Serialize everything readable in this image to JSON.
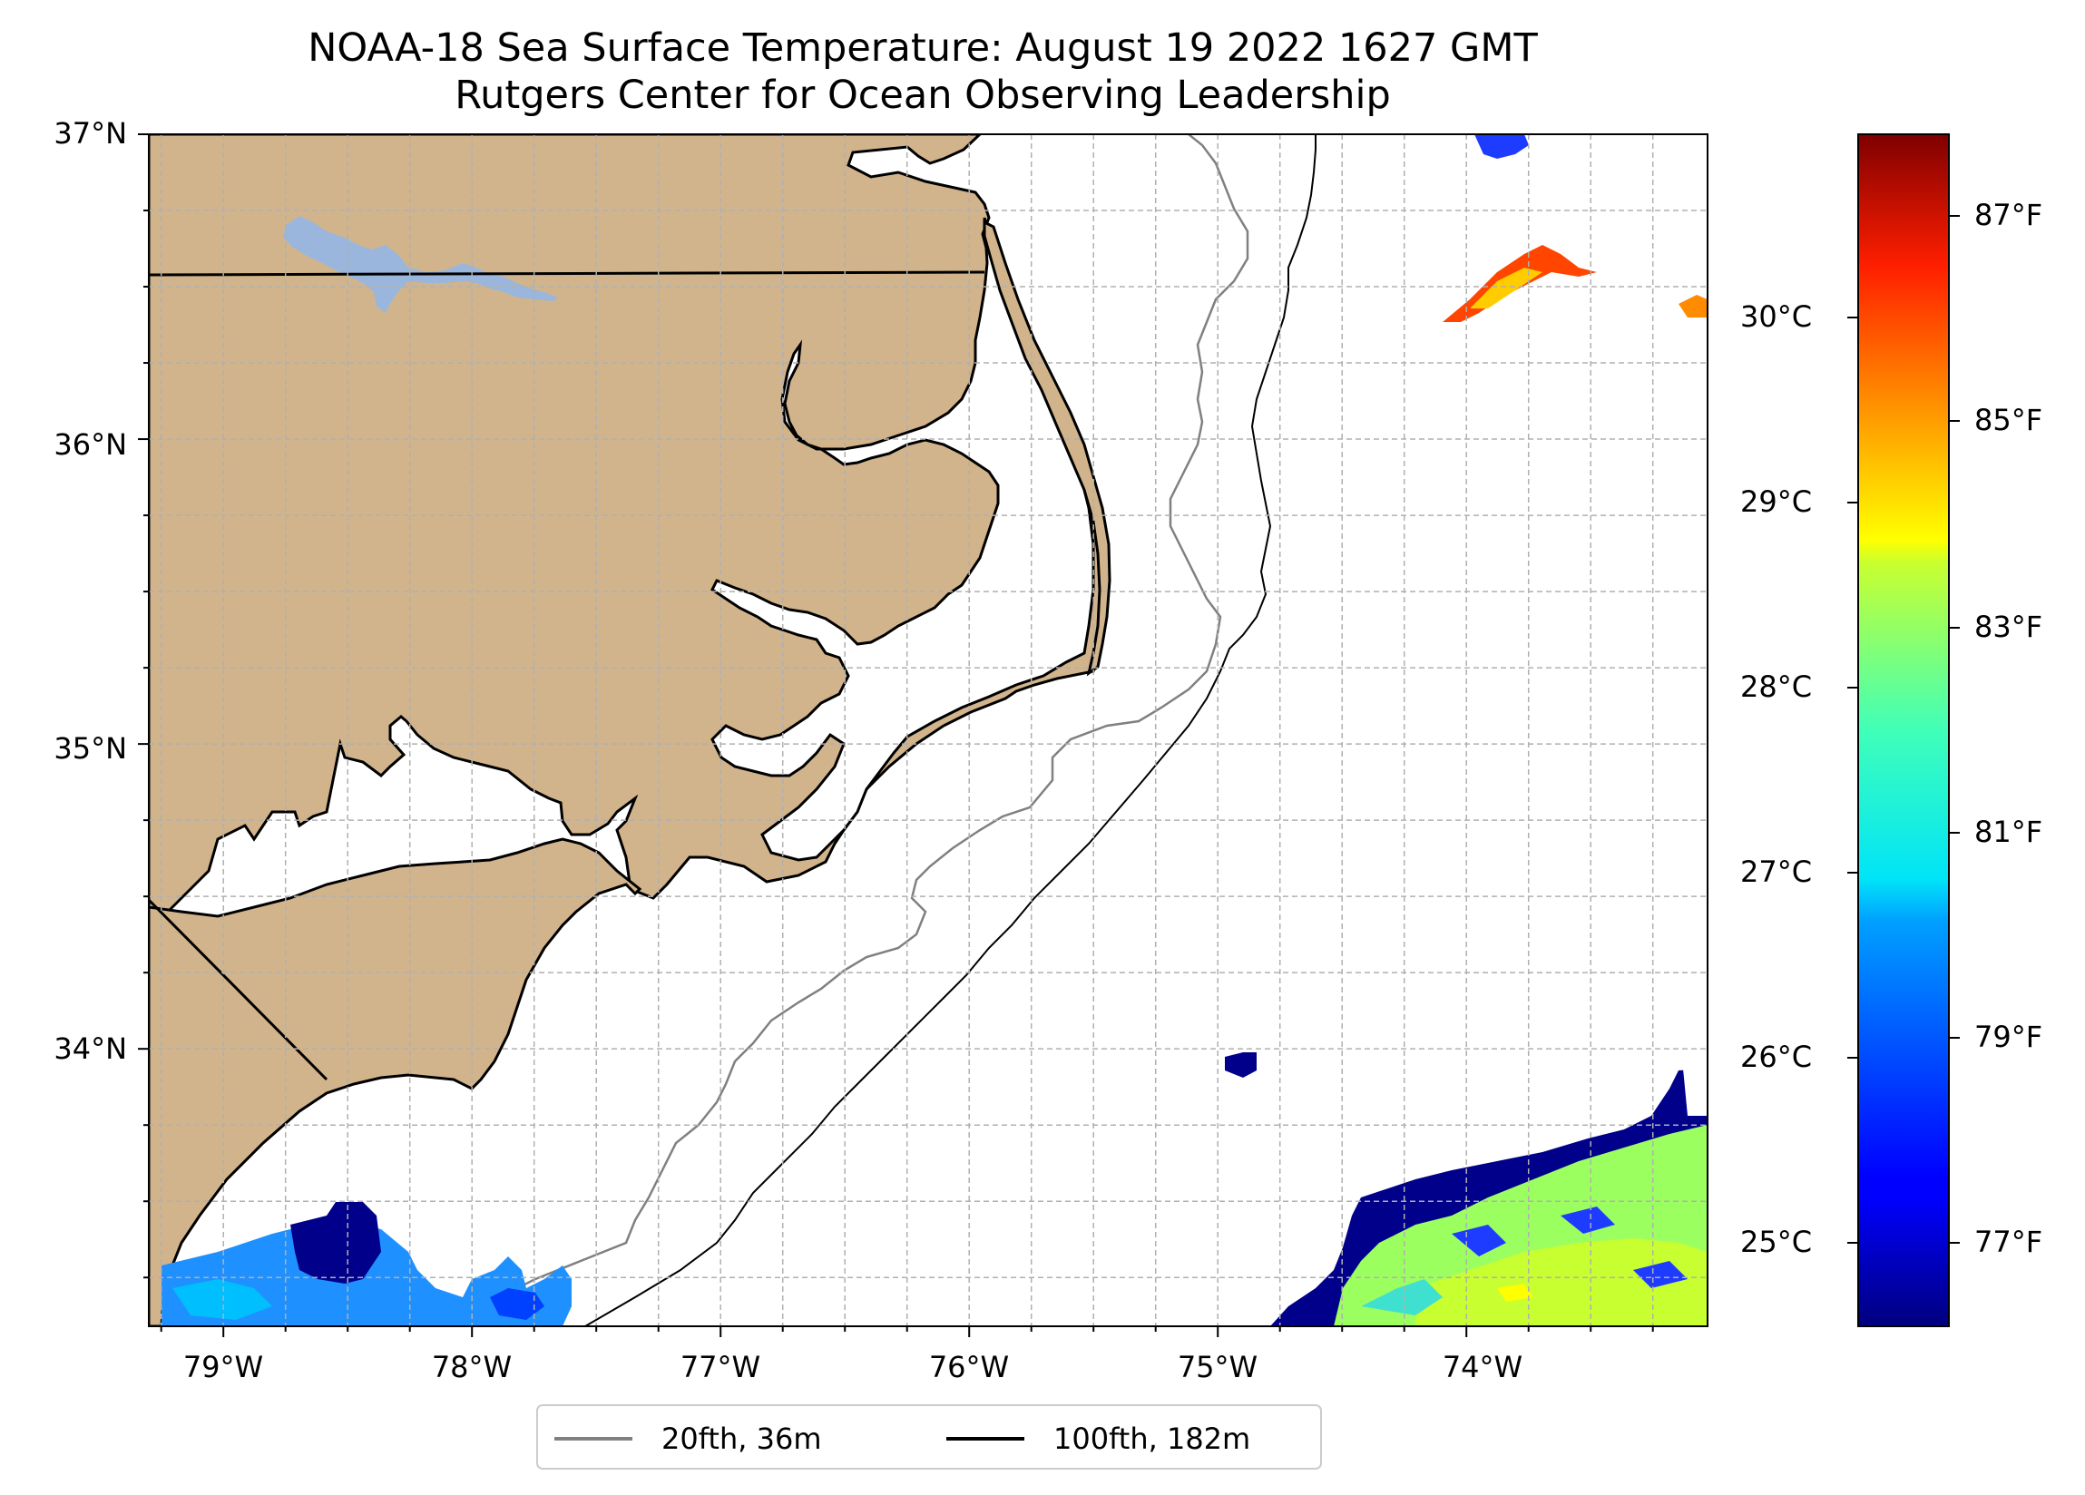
{
  "title": {
    "line1": "NOAA-18 Sea Surface Temperature: August 19 2022 1627 GMT",
    "line2": "Rutgers Center for Ocean Observing Leadership"
  },
  "map": {
    "lat_ticks": [
      "37°N",
      "36°N",
      "35°N",
      "34°N"
    ],
    "lon_ticks": [
      "79°W",
      "78°W",
      "77°W",
      "76°W",
      "75°W",
      "74°W"
    ],
    "land_color": "#d2b48c",
    "lake_color": "#9ab6dc",
    "grid": true,
    "extent": {
      "lon_min": -79.3,
      "lon_max": -73.03,
      "lat_min": 33.09,
      "lat_max": 37.0
    }
  },
  "colorbar": {
    "colormap": "jet",
    "celsius_ticks": [
      "30°C",
      "29°C",
      "28°C",
      "27°C",
      "26°C",
      "25°C"
    ],
    "fahrenheit_ticks": [
      "87°F",
      "85°F",
      "83°F",
      "81°F",
      "79°F",
      "77°F"
    ]
  },
  "legend": {
    "items": [
      {
        "label": "20fth, 36m",
        "color": "#808080"
      },
      {
        "label": "100fth, 182m",
        "color": "#000000"
      }
    ]
  }
}
